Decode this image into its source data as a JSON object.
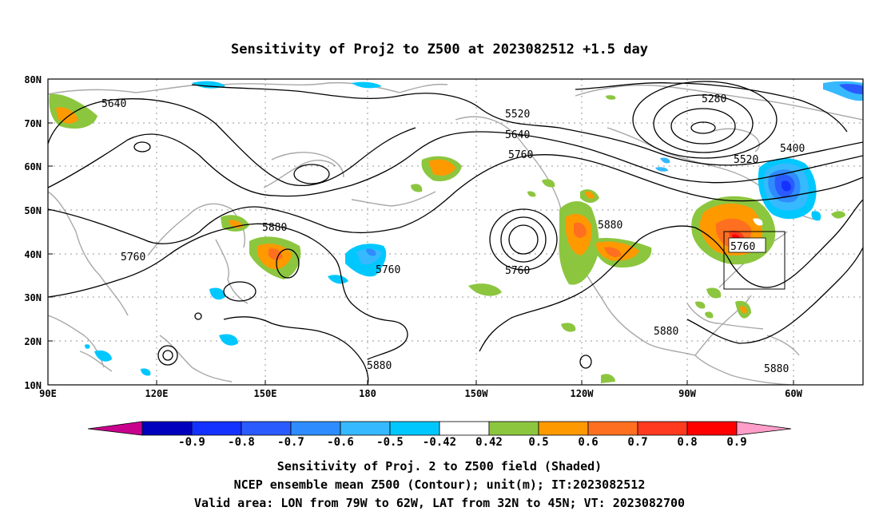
{
  "title": "Sensitivity of Proj2 to Z500 at 2023082512 +1.5 day",
  "axes": {
    "lat_labels": [
      "80N",
      "70N",
      "60N",
      "50N",
      "40N",
      "30N",
      "20N",
      "10N"
    ],
    "lon_labels": [
      "90E",
      "120E",
      "150E",
      "180",
      "150W",
      "120W",
      "90W",
      "60W"
    ]
  },
  "contour_labels": [
    {
      "id": "c5640",
      "text": "5640"
    },
    {
      "id": "c5520a",
      "text": "5520"
    },
    {
      "id": "c5640b",
      "text": "5640"
    },
    {
      "id": "c5760a",
      "text": "5760"
    },
    {
      "id": "c5280",
      "text": "5280"
    },
    {
      "id": "c5400",
      "text": "5400"
    },
    {
      "id": "c5520b",
      "text": "5520"
    },
    {
      "id": "c5880a",
      "text": "5880"
    },
    {
      "id": "c5880b",
      "text": "5880"
    },
    {
      "id": "c5760b",
      "text": "5760"
    },
    {
      "id": "c5760c",
      "text": "5760"
    },
    {
      "id": "c5760d",
      "text": "5760"
    },
    {
      "id": "c5760e",
      "text": "5760"
    },
    {
      "id": "c5880c",
      "text": "5880"
    },
    {
      "id": "c5880d",
      "text": "5880"
    },
    {
      "id": "c5880e",
      "text": "5880"
    }
  ],
  "colorbar": {
    "labels": [
      "-0.9",
      "-0.8",
      "-0.7",
      "-0.6",
      "-0.5",
      "-0.42",
      "0.42",
      "0.5",
      "0.6",
      "0.7",
      "0.8",
      "0.9"
    ],
    "colors": [
      "#0000bd",
      "#1432ff",
      "#2a5bff",
      "#2e8cff",
      "#37b9ff",
      "#00c8ff",
      "#ffffff",
      "#8cc63f",
      "#ff9900",
      "#ff6f20",
      "#ff3a1e",
      "#ff0000"
    ],
    "low_end_color": "#c8008c",
    "high_end_color": "#ff9ec8"
  },
  "caption": {
    "line1": "Sensitivity of Proj. 2 to Z500 field (Shaded)",
    "line2": "NCEP ensemble mean Z500 (Contour); unit(m); IT:2023082512",
    "line3": "Valid area: LON from 79W to 62W, LAT from 32N to 45N; VT: 2023082700"
  },
  "valid_area": {
    "lon_west": -79,
    "lon_east": -62,
    "lat_south": 32,
    "lat_north": 45
  },
  "map_extent": {
    "lon_min": 90,
    "lon_max": 315,
    "lat_min": 10,
    "lat_max": 80
  }
}
